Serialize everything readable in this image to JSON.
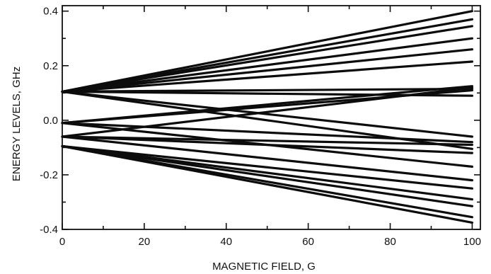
{
  "chart_data": {
    "type": "line",
    "title": "",
    "xlabel": "MAGNETIC FIELD, G",
    "ylabel": "ENERGY LEVELS, GHz",
    "xlim": [
      0,
      102
    ],
    "ylim": [
      -0.4,
      0.42
    ],
    "x_ticks": [
      0,
      20,
      40,
      60,
      80,
      100
    ],
    "y_ticks": [
      -0.4,
      -0.2,
      0.0,
      0.2,
      0.4
    ],
    "x_tick_labels": [
      "0",
      "20",
      "40",
      "60",
      "80",
      "100"
    ],
    "y_tick_labels": [
      "-0.4",
      "-0.2",
      "0.0",
      "0.2",
      "0.4"
    ],
    "grid": false,
    "legend": "none",
    "line_color": "#0c0c0c",
    "series": [
      {
        "x": [
          0,
          100
        ],
        "values": [
          0.105,
          0.4
        ]
      },
      {
        "x": [
          0,
          100
        ],
        "values": [
          0.105,
          0.37
        ]
      },
      {
        "x": [
          0,
          100
        ],
        "values": [
          0.105,
          0.345
        ]
      },
      {
        "x": [
          0,
          100
        ],
        "values": [
          0.105,
          0.3
        ]
      },
      {
        "x": [
          0,
          100
        ],
        "values": [
          0.105,
          0.26
        ]
      },
      {
        "x": [
          0,
          100
        ],
        "values": [
          0.105,
          0.215
        ]
      },
      {
        "x": [
          0,
          100
        ],
        "values": [
          0.105,
          0.115
        ]
      },
      {
        "x": [
          0,
          100
        ],
        "values": [
          0.105,
          0.09
        ]
      },
      {
        "x": [
          0,
          100
        ],
        "values": [
          0.105,
          -0.06
        ]
      },
      {
        "x": [
          0,
          100
        ],
        "values": [
          0.105,
          -0.105
        ]
      },
      {
        "x": [
          0,
          100
        ],
        "values": [
          -0.01,
          0.125
        ]
      },
      {
        "x": [
          0,
          100
        ],
        "values": [
          -0.01,
          0.11
        ]
      },
      {
        "x": [
          0,
          100
        ],
        "values": [
          -0.01,
          -0.08
        ]
      },
      {
        "x": [
          0,
          100
        ],
        "values": [
          -0.01,
          -0.17
        ]
      },
      {
        "x": [
          0,
          100
        ],
        "values": [
          -0.06,
          0.12
        ]
      },
      {
        "x": [
          0,
          100
        ],
        "values": [
          -0.06,
          -0.09
        ]
      },
      {
        "x": [
          0,
          100
        ],
        "values": [
          -0.06,
          -0.12
        ]
      },
      {
        "x": [
          0,
          100
        ],
        "values": [
          -0.06,
          -0.22
        ]
      },
      {
        "x": [
          0,
          100
        ],
        "values": [
          -0.095,
          -0.25
        ]
      },
      {
        "x": [
          0,
          100
        ],
        "values": [
          -0.095,
          -0.29
        ]
      },
      {
        "x": [
          0,
          100
        ],
        "values": [
          -0.095,
          -0.315
        ]
      },
      {
        "x": [
          0,
          100
        ],
        "values": [
          -0.095,
          -0.355
        ]
      },
      {
        "x": [
          0,
          100
        ],
        "values": [
          -0.095,
          -0.375
        ]
      }
    ]
  }
}
